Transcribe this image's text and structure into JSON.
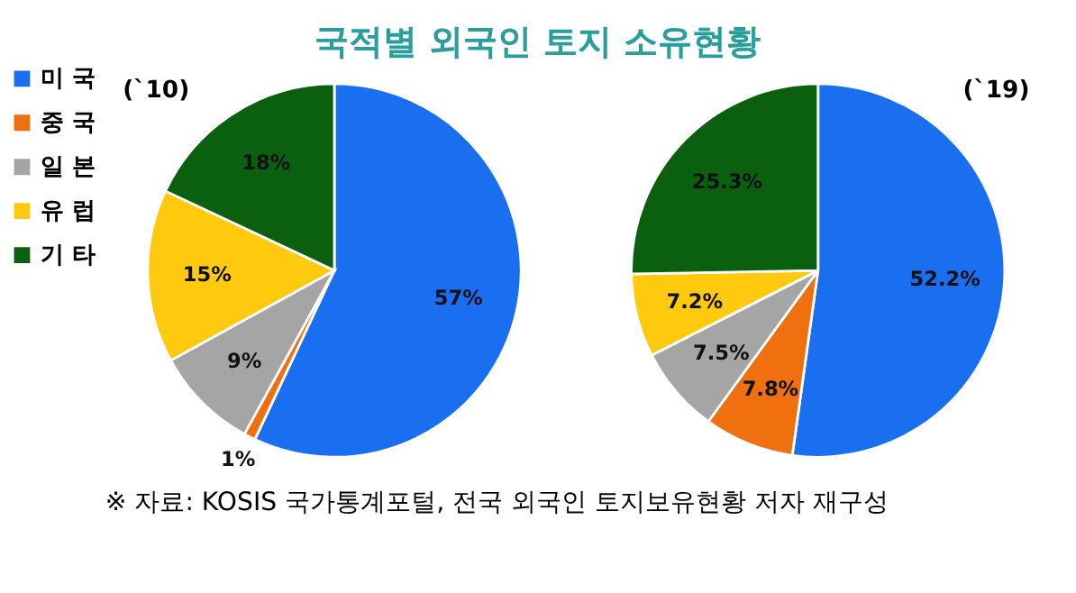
{
  "chart_data": [
    {
      "type": "pie",
      "title": "국적별 외국인 토지 소유현황",
      "subtitle": "(`10)",
      "categories": [
        "미 국",
        "중 국",
        "일 본",
        "유 럽",
        "기 타"
      ],
      "values": [
        57,
        1,
        9,
        15,
        18
      ],
      "value_labels": [
        "57%",
        "1%",
        "9%",
        "15%",
        "18%"
      ],
      "colors": [
        "#1a6ef0",
        "#f07010",
        "#a5a5a5",
        "#ffc90e",
        "#0b6010"
      ],
      "legend": "left"
    },
    {
      "type": "pie",
      "subtitle": "(`19)",
      "categories": [
        null,
        null,
        null,
        null,
        null
      ],
      "values": [
        52.2,
        7.8,
        7.5,
        7.2,
        25.3
      ],
      "value_labels": [
        "52.2%",
        "7.8%",
        "7.5%",
        "7.2%",
        "25.3%"
      ],
      "colors": [
        "#1a6ef0",
        "#f07010",
        "#a5a5a5",
        "#ffc90e",
        "#0b6010"
      ],
      "annotations": [
        "※ 자료: KOSIS 국가통계포털, 전국 외국인 토지보유현황 저자 재구성"
      ]
    }
  ]
}
